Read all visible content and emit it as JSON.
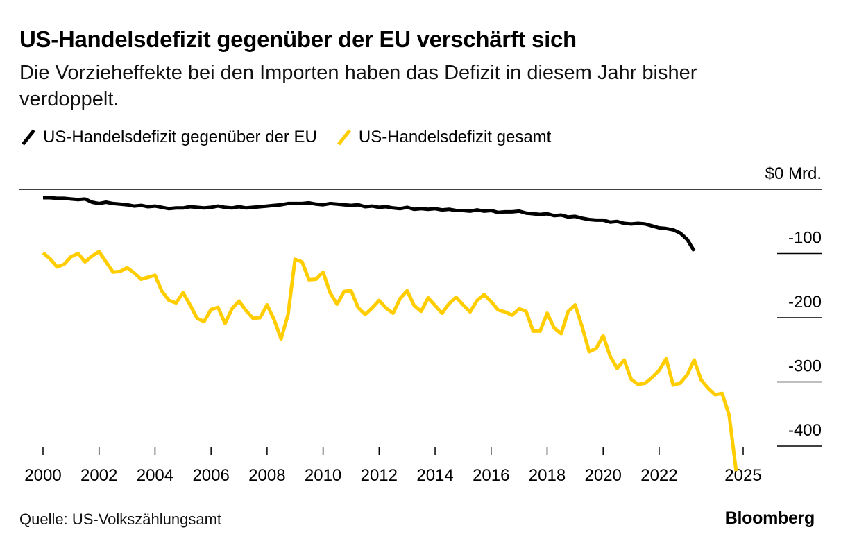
{
  "title": "US-Handelsdefizit gegenüber der EU verschärft sich",
  "subtitle": "Die Vorzieheffekte bei den Importen haben das Defizit in diesem Jahr bisher verdoppelt.",
  "source": "Quelle: US-Volkszählungsamt",
  "brand": "Bloomberg",
  "chart_data": {
    "type": "line",
    "x_start": 2000.0,
    "x_step": 0.25,
    "xlim": [
      2000,
      2025
    ],
    "ylim": [
      -430,
      0
    ],
    "x_ticks": [
      {
        "value": 2000,
        "label": "2000"
      },
      {
        "value": 2002,
        "label": "2002"
      },
      {
        "value": 2004,
        "label": "2004"
      },
      {
        "value": 2006,
        "label": "2006"
      },
      {
        "value": 2008,
        "label": "2008"
      },
      {
        "value": 2010,
        "label": "2010"
      },
      {
        "value": 2012,
        "label": "2012"
      },
      {
        "value": 2014,
        "label": "2014"
      },
      {
        "value": 2016,
        "label": "2016"
      },
      {
        "value": 2018,
        "label": "2018"
      },
      {
        "value": 2020,
        "label": "2020"
      },
      {
        "value": 2022,
        "label": "2022"
      },
      {
        "value": 2025,
        "label": "2025"
      }
    ],
    "y_ticks": [
      {
        "value": 0,
        "label": "$0 Mrd."
      },
      {
        "value": -100,
        "label": "-100"
      },
      {
        "value": -200,
        "label": "-200"
      },
      {
        "value": -300,
        "label": "-300"
      },
      {
        "value": -400,
        "label": "-400"
      }
    ],
    "series": [
      {
        "name": "US-Handelsdefizit gegenüber der EU",
        "color": "#000000",
        "values": [
          -13,
          -13,
          -14,
          -14,
          -15,
          -16,
          -15,
          -20,
          -22,
          -20,
          -22,
          -23,
          -24,
          -26,
          -25,
          -27,
          -26,
          -28,
          -30,
          -29,
          -29,
          -27,
          -28,
          -29,
          -28,
          -26,
          -28,
          -29,
          -27,
          -29,
          -28,
          -27,
          -26,
          -25,
          -24,
          -22,
          -22,
          -22,
          -21,
          -23,
          -24,
          -22,
          -23,
          -24,
          -25,
          -24,
          -27,
          -26,
          -28,
          -27,
          -29,
          -30,
          -28,
          -31,
          -30,
          -31,
          -30,
          -32,
          -31,
          -33,
          -33,
          -34,
          -32,
          -34,
          -33,
          -36,
          -35,
          -35,
          -34,
          -37,
          -38,
          -39,
          -38,
          -41,
          -40,
          -43,
          -42,
          -45,
          -47,
          -48,
          -48,
          -51,
          -50,
          -53,
          -54,
          -53,
          -54,
          -57,
          -60,
          -61,
          -63,
          -68,
          -78,
          -96
        ]
      },
      {
        "name": "US-Handelsdefizit gesamt",
        "color": "#FFCD00",
        "values": [
          -99,
          -108,
          -121,
          -117,
          -105,
          -100,
          -113,
          -104,
          -97,
          -113,
          -129,
          -128,
          -122,
          -130,
          -140,
          -137,
          -134,
          -159,
          -173,
          -177,
          -161,
          -180,
          -201,
          -206,
          -187,
          -184,
          -209,
          -186,
          -174,
          -189,
          -201,
          -200,
          -180,
          -203,
          -233,
          -195,
          -109,
          -113,
          -141,
          -140,
          -129,
          -161,
          -179,
          -159,
          -158,
          -184,
          -195,
          -185,
          -173,
          -185,
          -193,
          -170,
          -158,
          -181,
          -190,
          -169,
          -181,
          -193,
          -178,
          -168,
          -180,
          -191,
          -173,
          -164,
          -175,
          -188,
          -191,
          -196,
          -186,
          -190,
          -221,
          -221,
          -193,
          -216,
          -225,
          -190,
          -180,
          -214,
          -253,
          -248,
          -228,
          -260,
          -279,
          -266,
          -296,
          -304,
          -302,
          -293,
          -282,
          -264,
          -305,
          -302,
          -289,
          -266,
          -297,
          -310,
          -320,
          -318,
          -352,
          -439
        ]
      }
    ]
  }
}
